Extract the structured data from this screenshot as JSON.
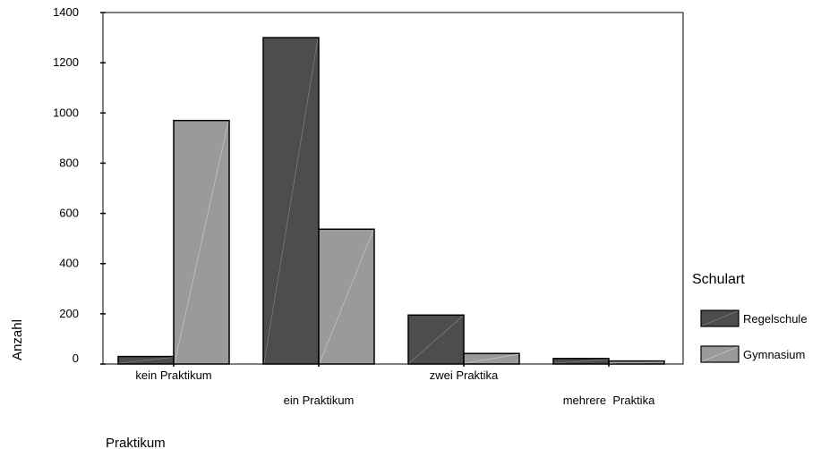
{
  "chart_data": {
    "type": "bar",
    "categories": [
      "kein Praktikum",
      "ein Praktikum",
      "zwei Praktika",
      "mehrere  Praktika"
    ],
    "series": [
      {
        "name": "Regelschule",
        "values": [
          30,
          1300,
          195,
          22
        ],
        "color": "#4d4d4d"
      },
      {
        "name": "Gymnasium",
        "values": [
          970,
          537,
          42,
          12
        ],
        "color": "#9a9a9a"
      }
    ],
    "xlabel": "Praktikum",
    "ylabel": "Anzahl",
    "ylim": [
      0,
      1400
    ],
    "yticks": [
      0,
      200,
      400,
      600,
      800,
      1000,
      1200,
      1400
    ],
    "legend": {
      "title": "Schulart",
      "position": "right"
    },
    "grid": false
  }
}
